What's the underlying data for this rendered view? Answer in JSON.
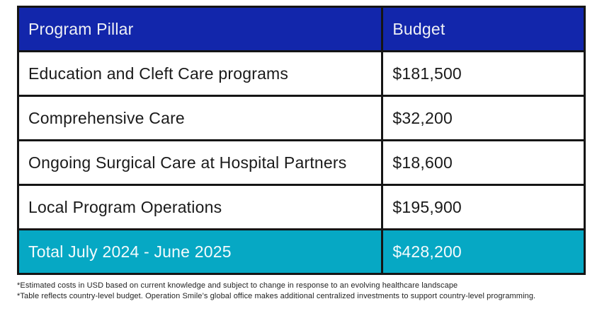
{
  "table": {
    "columns": [
      {
        "label": "Program Pillar"
      },
      {
        "label": "Budget"
      }
    ],
    "rows": [
      {
        "pillar": "Education and Cleft Care programs",
        "budget": "$181,500"
      },
      {
        "pillar": "Comprehensive Care",
        "budget": "$32,200"
      },
      {
        "pillar": "Ongoing Surgical Care at Hospital Partners",
        "budget": "$18,600"
      },
      {
        "pillar": "Local Program Operations",
        "budget": "$195,900"
      }
    ],
    "total": {
      "label": "Total July 2024 - June 2025",
      "budget": "$428,200"
    }
  },
  "footnotes": [
    "*Estimated costs in USD based on current knowledge and subject to change in response to an evolving healthcare landscape",
    "*Table reflects country-level budget. Operation Smile’s global office makes additional centralized investments to support country-level programming."
  ],
  "colors": {
    "header_bg": "#1226ab",
    "header_text": "#eef0f5",
    "total_bg": "#06a8c4",
    "total_text": "#f4fbfd",
    "border": "#151515",
    "body_text": "#1a1a1a",
    "page_bg": "#ffffff"
  },
  "chart_data": {
    "type": "table",
    "title": "",
    "columns": [
      "Program Pillar",
      "Budget"
    ],
    "rows": [
      [
        "Education and Cleft Care programs",
        181500
      ],
      [
        "Comprehensive Care",
        32200
      ],
      [
        "Ongoing Surgical Care at Hospital Partners",
        18600
      ],
      [
        "Local Program Operations",
        195900
      ]
    ],
    "total_row": [
      "Total July 2024 - June 2025",
      428200
    ],
    "currency": "USD",
    "period": "July 2024 - June 2025"
  }
}
